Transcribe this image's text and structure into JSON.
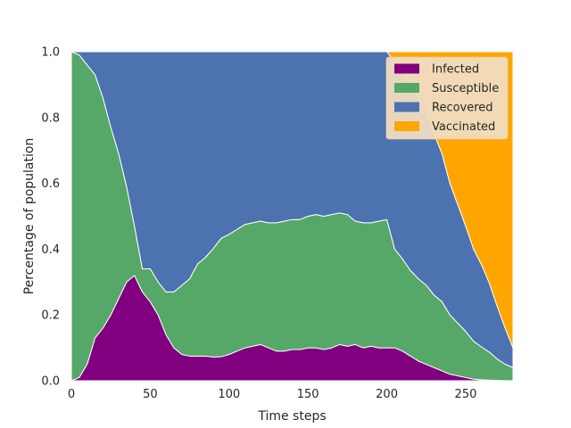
{
  "chart_data": {
    "type": "area",
    "stacked": true,
    "title": "",
    "xlabel": "Time steps",
    "ylabel": "Percentage of population",
    "xlim": [
      0,
      280
    ],
    "ylim": [
      0,
      1
    ],
    "xticks": [
      "0",
      "50",
      "100",
      "150",
      "200",
      "250"
    ],
    "xtick_values": [
      0,
      50,
      100,
      150,
      200,
      250
    ],
    "yticks": [
      "0.0",
      "0.2",
      "0.4",
      "0.6",
      "0.8",
      "1.0"
    ],
    "ytick_values": [
      0,
      0.2,
      0.4,
      0.6,
      0.8,
      1.0
    ],
    "grid": false,
    "legend_position": "top-right",
    "x": [
      0,
      5,
      10,
      15,
      20,
      25,
      30,
      35,
      40,
      45,
      50,
      55,
      60,
      65,
      70,
      75,
      80,
      85,
      90,
      95,
      100,
      105,
      110,
      115,
      120,
      125,
      130,
      135,
      140,
      145,
      150,
      155,
      160,
      165,
      170,
      175,
      180,
      185,
      190,
      195,
      200,
      205,
      210,
      215,
      220,
      225,
      230,
      235,
      240,
      245,
      250,
      255,
      260,
      265,
      270,
      275,
      280
    ],
    "series": [
      {
        "name": "Infected",
        "color": "#800080",
        "values": [
          0.0,
          0.01,
          0.05,
          0.13,
          0.16,
          0.2,
          0.25,
          0.3,
          0.32,
          0.27,
          0.24,
          0.2,
          0.14,
          0.1,
          0.08,
          0.075,
          0.075,
          0.075,
          0.072,
          0.073,
          0.08,
          0.09,
          0.1,
          0.105,
          0.11,
          0.1,
          0.09,
          0.09,
          0.095,
          0.095,
          0.1,
          0.1,
          0.095,
          0.1,
          0.11,
          0.105,
          0.11,
          0.1,
          0.105,
          0.1,
          0.1,
          0.1,
          0.09,
          0.075,
          0.06,
          0.05,
          0.04,
          0.03,
          0.02,
          0.015,
          0.01,
          0.005,
          0.003,
          0.002,
          0.001,
          0.0005,
          0.0
        ]
      },
      {
        "name": "Susceptible",
        "color": "#55a868",
        "values": [
          1.0,
          0.98,
          0.91,
          0.8,
          0.7,
          0.57,
          0.44,
          0.29,
          0.15,
          0.07,
          0.1,
          0.1,
          0.13,
          0.17,
          0.21,
          0.235,
          0.28,
          0.3,
          0.33,
          0.36,
          0.365,
          0.37,
          0.375,
          0.375,
          0.375,
          0.38,
          0.39,
          0.395,
          0.395,
          0.395,
          0.4,
          0.405,
          0.405,
          0.405,
          0.4,
          0.4,
          0.375,
          0.38,
          0.375,
          0.385,
          0.39,
          0.3,
          0.28,
          0.26,
          0.25,
          0.24,
          0.22,
          0.21,
          0.18,
          0.16,
          0.14,
          0.115,
          0.1,
          0.085,
          0.065,
          0.05,
          0.04
        ]
      },
      {
        "name": "Recovered",
        "color": "#4c72b0",
        "values": [
          0.0,
          0.01,
          0.04,
          0.07,
          0.14,
          0.23,
          0.31,
          0.41,
          0.53,
          0.66,
          0.66,
          0.7,
          0.73,
          0.73,
          0.71,
          0.69,
          0.645,
          0.625,
          0.598,
          0.567,
          0.555,
          0.54,
          0.525,
          0.52,
          0.515,
          0.52,
          0.52,
          0.515,
          0.51,
          0.51,
          0.5,
          0.495,
          0.5,
          0.495,
          0.49,
          0.495,
          0.515,
          0.52,
          0.52,
          0.515,
          0.51,
          0.57,
          0.57,
          0.57,
          0.55,
          0.53,
          0.49,
          0.45,
          0.4,
          0.36,
          0.32,
          0.28,
          0.25,
          0.21,
          0.16,
          0.11,
          0.06
        ]
      },
      {
        "name": "Vaccinated",
        "color": "#ffa500",
        "values": [
          0.0,
          0.0,
          0.0,
          0.0,
          0.0,
          0.0,
          0.0,
          0.0,
          0.0,
          0.0,
          0.0,
          0.0,
          0.0,
          0.0,
          0.0,
          0.0,
          0.0,
          0.0,
          0.0,
          0.0,
          0.0,
          0.0,
          0.0,
          0.0,
          0.0,
          0.0,
          0.0,
          0.0,
          0.0,
          0.0,
          0.0,
          0.0,
          0.0,
          0.0,
          0.0,
          0.0,
          0.0,
          0.0,
          0.0,
          0.0,
          0.0,
          0.03,
          0.06,
          0.095,
          0.14,
          0.18,
          0.25,
          0.31,
          0.4,
          0.465,
          0.53,
          0.6,
          0.647,
          0.703,
          0.774,
          0.8395,
          0.9
        ]
      }
    ],
    "legend_entries": [
      "Infected",
      "Susceptible",
      "Recovered",
      "Vaccinated"
    ],
    "legend_background": "#f0dcbf"
  }
}
